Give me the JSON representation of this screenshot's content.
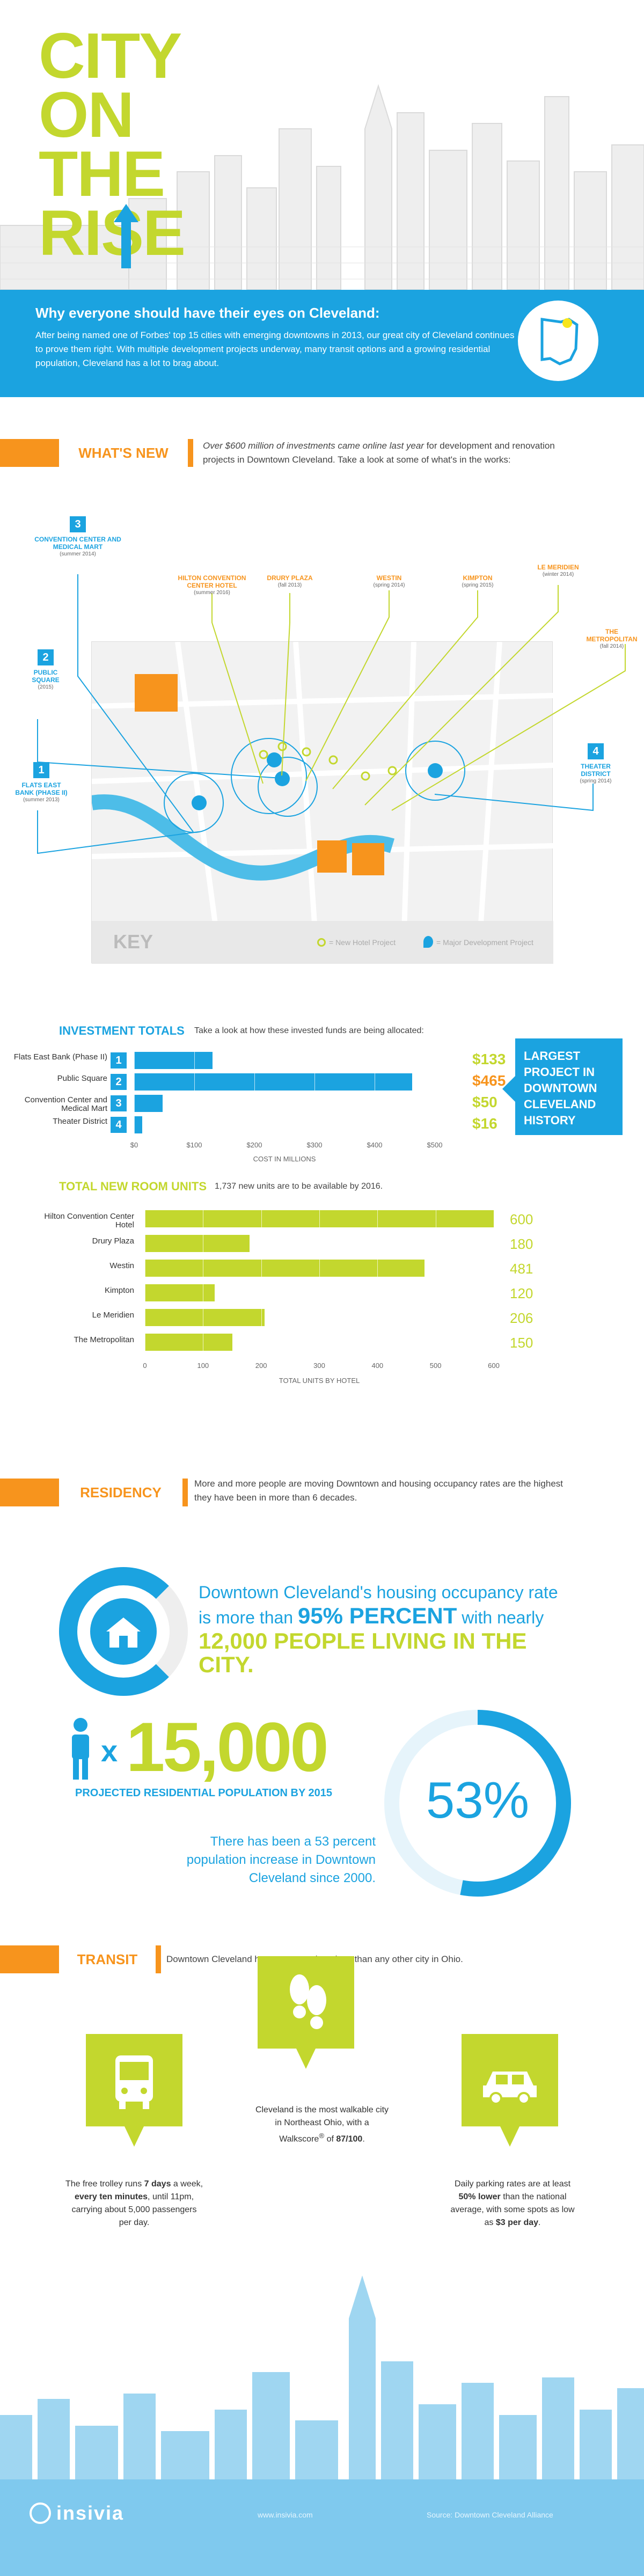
{
  "hero": {
    "title_lines": [
      "CITY",
      "ON",
      "THE",
      "RISE"
    ]
  },
  "intro": {
    "heading": "Why everyone should have their eyes on Cleveland:",
    "body": "After being named one of Forbes' top 15 cities with emerging downtowns in 2013, our great city of Cleveland continues to prove them right. With multiple development projects underway, many transit options and a growing residential population, Cleveland has a lot to brag about."
  },
  "whats_new": {
    "label": "WHAT'S NEW",
    "description_bold": "Over $600 million of investments came online last year",
    "description_rest": " for development and renovation projects in Downtown Cleveland. Take a look at some of what's in the works:",
    "major_projects": [
      {
        "num": "3",
        "name": "CONVENTION CENTER AND MEDICAL MART",
        "date": "(summer 2014)"
      },
      {
        "num": "2",
        "name": "PUBLIC SQUARE",
        "date": "(2015)"
      },
      {
        "num": "1",
        "name": "FLATS EAST BANK (PHASE II)",
        "date": "(summer 2013)"
      },
      {
        "num": "4",
        "name": "THEATER DISTRICT",
        "date": "(spring 2014)"
      }
    ],
    "hotel_projects": [
      {
        "name": "HILTON CONVENTION CENTER HOTEL",
        "date": "(summer 2016)"
      },
      {
        "name": "DRURY PLAZA",
        "date": "(fall 2013)"
      },
      {
        "name": "WESTIN",
        "date": "(spring 2014)"
      },
      {
        "name": "KIMPTON",
        "date": "(spring 2015)"
      },
      {
        "name": "LE MERIDIEN",
        "date": "(winter 2014)"
      },
      {
        "name": "THE METROPOLITAN",
        "date": "(fall 2014)"
      }
    ],
    "key": {
      "title": "KEY",
      "hotel_label": "= New Hotel Project",
      "major_label": "= Major Development Project"
    }
  },
  "investment": {
    "title": "INVESTMENT TOTALS",
    "subtitle": "Take a look at how these invested funds are being allocated:",
    "callout": "LARGEST PROJECT IN DOWNTOWN CLEVELAND HISTORY",
    "colors": {
      "bar": "#1ba3e0",
      "value": "#c3d72e",
      "highlight": "#f7941d"
    }
  },
  "rooms": {
    "title": "TOTAL NEW ROOM UNITS",
    "subtitle": "1,737 new units are to be available by 2016."
  },
  "residency": {
    "label": "RESIDENCY",
    "description": "More and more people are moving Downtown and housing occupancy rates are the highest they have been in more than 6 decades.",
    "occupancy_line1": "Downtown Cleveland's housing occupancy rate",
    "occupancy_prefix": "is more than ",
    "occupancy_percent": "95% PERCENT",
    "occupancy_suffix": " with nearly",
    "occupancy_people": "12,000 PEOPLE LIVING IN THE CITY.",
    "multiplier": "x",
    "population": "15,000",
    "population_caption": "PROJECTED RESIDENTIAL POPULATION BY 2015",
    "growth_percent": "53%",
    "growth_fraction": 0.53,
    "growth_caption": "There has been a 53 percent population increase in Downtown Cleveland since 2000."
  },
  "transit": {
    "label": "TRANSIT",
    "description": "Downtown Cleveland has more transit options than any other city in Ohio.",
    "trolley": {
      "pre": "The free trolley runs ",
      "b1": "7 days",
      "mid1": " a week, ",
      "b2": "every ten minutes",
      "post": ", until 11pm, carrying about 5,000 passengers per day."
    },
    "walk": {
      "pre": "Cleveland is the most walkable city in Northeast Ohio, with a Walkscore",
      "reg": "®",
      "mid": " of ",
      "b1": "87/100",
      "post": "."
    },
    "parking": {
      "pre": "Daily parking rates are at least ",
      "b1": "50% lower",
      "mid": " than the national average, with some spots as low as ",
      "b2": "$3 per day",
      "post": "."
    }
  },
  "footer": {
    "brand": "insivia",
    "url": "www.insivia.com",
    "source": "Source: Downtown Cleveland Alliance"
  },
  "chart_data": [
    {
      "type": "bar",
      "title": "INVESTMENT TOTALS",
      "xlabel": "COST IN MILLIONS",
      "categories": [
        "Flats East Bank (Phase II)",
        "Public Square",
        "Convention Center and Medical Mart",
        "Theater District"
      ],
      "category_numbers": [
        "1",
        "2",
        "3",
        "4"
      ],
      "values": [
        133,
        465,
        50,
        16
      ],
      "value_labels": [
        "$133",
        "$465",
        "$50",
        "$16"
      ],
      "xlim": [
        0,
        500
      ],
      "ticks": [
        "$0",
        "$100",
        "$200",
        "$300",
        "$400",
        "$500"
      ],
      "tick_values": [
        0,
        100,
        200,
        300,
        400,
        500
      ]
    },
    {
      "type": "bar",
      "title": "TOTAL NEW ROOM UNITS",
      "xlabel": "TOTAL UNITS BY HOTEL",
      "categories": [
        "Hilton Convention Center Hotel",
        "Drury Plaza",
        "Westin",
        "Kimpton",
        "Le Meridien",
        "The Metropolitan"
      ],
      "values": [
        600,
        180,
        481,
        120,
        206,
        150
      ],
      "value_labels": [
        "600",
        "180",
        "481",
        "120",
        "206",
        "150"
      ],
      "xlim": [
        0,
        600
      ],
      "ticks": [
        "0",
        "100",
        "200",
        "300",
        "400",
        "500",
        "600"
      ],
      "tick_values": [
        0,
        100,
        200,
        300,
        400,
        500,
        600
      ]
    }
  ]
}
